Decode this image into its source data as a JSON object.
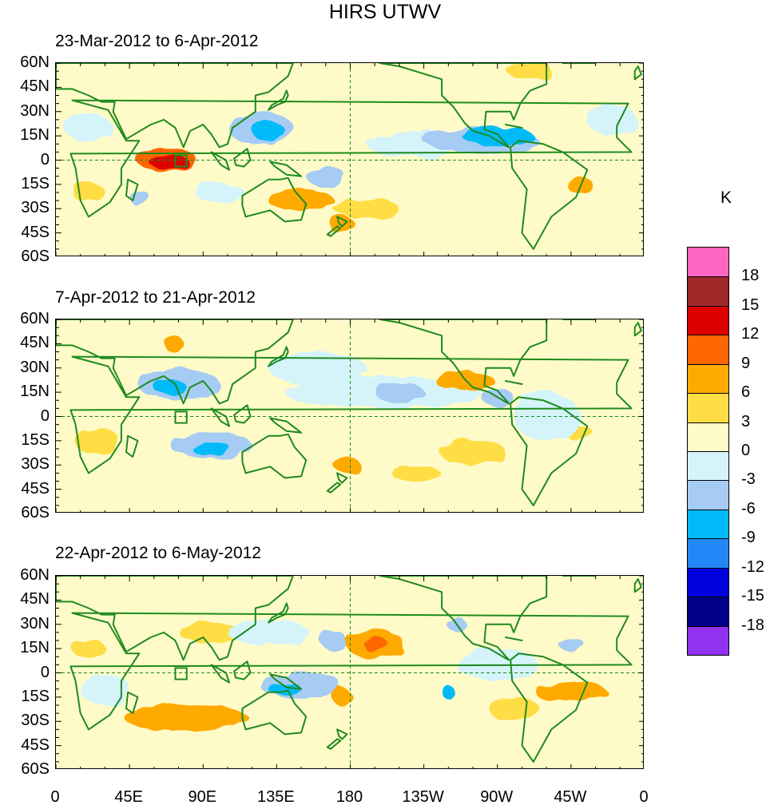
{
  "chart_data": {
    "type": "filled-contour-map",
    "title": "HIRS UTWV",
    "units": "K",
    "panels": [
      {
        "title": "23-Mar-2012 to 6-Apr-2012",
        "anomalies": [
          {
            "label": "+",
            "lon": 70,
            "lat": -2,
            "value": 12,
            "rx": 12,
            "ry": 5
          },
          {
            "label": "+",
            "lon": 68,
            "lat": 0,
            "value": 9,
            "rx": 18,
            "ry": 8
          },
          {
            "label": "+",
            "lon": 150,
            "lat": -25,
            "value": 6,
            "rx": 20,
            "ry": 7
          },
          {
            "label": "+",
            "lon": 175,
            "lat": -40,
            "value": 6,
            "rx": 8,
            "ry": 5
          },
          {
            "label": "+",
            "lon": 320,
            "lat": -15,
            "value": 6,
            "rx": 8,
            "ry": 5
          },
          {
            "label": "+",
            "lon": 290,
            "lat": 55,
            "value": 3,
            "rx": 14,
            "ry": 5
          },
          {
            "label": "+",
            "lon": 20,
            "lat": -20,
            "value": 3,
            "rx": 10,
            "ry": 6
          },
          {
            "label": "+",
            "lon": 190,
            "lat": -30,
            "value": 3,
            "rx": 20,
            "ry": 6
          },
          {
            "label": "-",
            "lon": 270,
            "lat": 15,
            "value": -9,
            "rx": 22,
            "ry": 5
          },
          {
            "label": "-",
            "lon": 260,
            "lat": 12,
            "value": -6,
            "rx": 35,
            "ry": 8
          },
          {
            "label": "-",
            "lon": 130,
            "lat": 18,
            "value": -9,
            "rx": 10,
            "ry": 6
          },
          {
            "label": "-",
            "lon": 125,
            "lat": 20,
            "value": -6,
            "rx": 20,
            "ry": 10
          },
          {
            "label": "-",
            "lon": 165,
            "lat": -10,
            "value": -6,
            "rx": 12,
            "ry": 6
          },
          {
            "label": "-",
            "lon": 50,
            "lat": -22,
            "value": -6,
            "rx": 6,
            "ry": 5
          },
          {
            "label": "-",
            "lon": 20,
            "lat": 20,
            "value": -3,
            "rx": 15,
            "ry": 8
          },
          {
            "label": "-",
            "lon": 220,
            "lat": 10,
            "value": -3,
            "rx": 30,
            "ry": 8
          },
          {
            "label": "-",
            "lon": 340,
            "lat": 25,
            "value": -3,
            "rx": 15,
            "ry": 10
          },
          {
            "label": "-",
            "lon": 100,
            "lat": -20,
            "value": -3,
            "rx": 15,
            "ry": 6
          }
        ]
      },
      {
        "title": "7-Apr-2012 to 21-Apr-2012",
        "anomalies": [
          {
            "label": "+",
            "lon": 250,
            "lat": 22,
            "value": 6,
            "rx": 18,
            "ry": 6
          },
          {
            "label": "+",
            "lon": 178,
            "lat": -30,
            "value": 6,
            "rx": 8,
            "ry": 5
          },
          {
            "label": "+",
            "lon": 72,
            "lat": 45,
            "value": 6,
            "rx": 6,
            "ry": 5
          },
          {
            "label": "+",
            "lon": 25,
            "lat": -15,
            "value": 3,
            "rx": 14,
            "ry": 8
          },
          {
            "label": "+",
            "lon": 255,
            "lat": -22,
            "value": 3,
            "rx": 20,
            "ry": 8
          },
          {
            "label": "+",
            "lon": 320,
            "lat": -10,
            "value": 3,
            "rx": 8,
            "ry": 5
          },
          {
            "label": "+",
            "lon": 220,
            "lat": -35,
            "value": 3,
            "rx": 15,
            "ry": 5
          },
          {
            "label": "-",
            "lon": 70,
            "lat": 18,
            "value": -9,
            "rx": 10,
            "ry": 5
          },
          {
            "label": "-",
            "lon": 75,
            "lat": 20,
            "value": -6,
            "rx": 25,
            "ry": 10
          },
          {
            "label": "-",
            "lon": 95,
            "lat": -20,
            "value": -9,
            "rx": 12,
            "ry": 4
          },
          {
            "label": "-",
            "lon": 95,
            "lat": -18,
            "value": -6,
            "rx": 25,
            "ry": 8
          },
          {
            "label": "-",
            "lon": 210,
            "lat": 15,
            "value": -6,
            "rx": 15,
            "ry": 6
          },
          {
            "label": "-",
            "lon": 270,
            "lat": 12,
            "value": -6,
            "rx": 10,
            "ry": 5
          },
          {
            "label": "-",
            "lon": 200,
            "lat": 15,
            "value": -3,
            "rx": 60,
            "ry": 10
          },
          {
            "label": "-",
            "lon": 160,
            "lat": 30,
            "value": -3,
            "rx": 30,
            "ry": 10
          },
          {
            "label": "-",
            "lon": 300,
            "lat": 0,
            "value": -3,
            "rx": 20,
            "ry": 15
          }
        ]
      },
      {
        "title": "22-Apr-2012 to 6-May-2012",
        "anomalies": [
          {
            "label": "+",
            "lon": 195,
            "lat": 18,
            "value": 9,
            "rx": 8,
            "ry": 4
          },
          {
            "label": "+",
            "lon": 195,
            "lat": 18,
            "value": 6,
            "rx": 18,
            "ry": 8
          },
          {
            "label": "+",
            "lon": 315,
            "lat": -12,
            "value": 6,
            "rx": 22,
            "ry": 6
          },
          {
            "label": "+",
            "lon": 80,
            "lat": -28,
            "value": 6,
            "rx": 38,
            "ry": 8
          },
          {
            "label": "+",
            "lon": 175,
            "lat": -15,
            "value": 6,
            "rx": 6,
            "ry": 5
          },
          {
            "label": "+",
            "lon": 280,
            "lat": -22,
            "value": 3,
            "rx": 15,
            "ry": 8
          },
          {
            "label": "+",
            "lon": 95,
            "lat": 25,
            "value": 3,
            "rx": 20,
            "ry": 6
          },
          {
            "label": "+",
            "lon": 20,
            "lat": 15,
            "value": 3,
            "rx": 10,
            "ry": 6
          },
          {
            "label": "-",
            "lon": 140,
            "lat": -10,
            "value": -9,
            "rx": 10,
            "ry": 4
          },
          {
            "label": "-",
            "lon": 150,
            "lat": -8,
            "value": -6,
            "rx": 25,
            "ry": 8
          },
          {
            "label": "-",
            "lon": 240,
            "lat": -12,
            "value": -9,
            "rx": 4,
            "ry": 4
          },
          {
            "label": "-",
            "lon": 170,
            "lat": 20,
            "value": -6,
            "rx": 8,
            "ry": 6
          },
          {
            "label": "-",
            "lon": 245,
            "lat": 30,
            "value": -6,
            "rx": 6,
            "ry": 4
          },
          {
            "label": "-",
            "lon": 315,
            "lat": 18,
            "value": -6,
            "rx": 8,
            "ry": 4
          },
          {
            "label": "-",
            "lon": 130,
            "lat": 25,
            "value": -3,
            "rx": 25,
            "ry": 8
          },
          {
            "label": "-",
            "lon": 270,
            "lat": 5,
            "value": -3,
            "rx": 25,
            "ry": 10
          },
          {
            "label": "-",
            "lon": 30,
            "lat": -10,
            "value": -3,
            "rx": 15,
            "ry": 10
          }
        ]
      }
    ],
    "lon_ticks": [
      "0",
      "45E",
      "90E",
      "135E",
      "180",
      "135W",
      "90W",
      "45W",
      "0"
    ],
    "lat_ticks": [
      "60N",
      "45N",
      "30N",
      "15N",
      "0",
      "15S",
      "30S",
      "45S",
      "60S"
    ],
    "lon_range": [
      0,
      360
    ],
    "lat_range": [
      -60,
      60
    ],
    "reference_lines": [
      "equator",
      "dateline"
    ],
    "colorbar": {
      "levels": [
        "18",
        "15",
        "12",
        "9",
        "6",
        "3",
        "0",
        "-3",
        "-6",
        "-9",
        "-12",
        "-15",
        "-18"
      ],
      "colors": [
        "#ff66c4",
        "#a02828",
        "#dd0000",
        "#ff6600",
        "#ffaa00",
        "#ffdd44",
        "#fffbc8",
        "#d4f4fa",
        "#a6ccf4",
        "#00bbf8",
        "#2288f8",
        "#0000dd",
        "#000088",
        "#9133f0"
      ]
    },
    "feature_colors": {
      "coast": "#1e8a1e",
      "ocean_base": "#fffbc8"
    }
  }
}
